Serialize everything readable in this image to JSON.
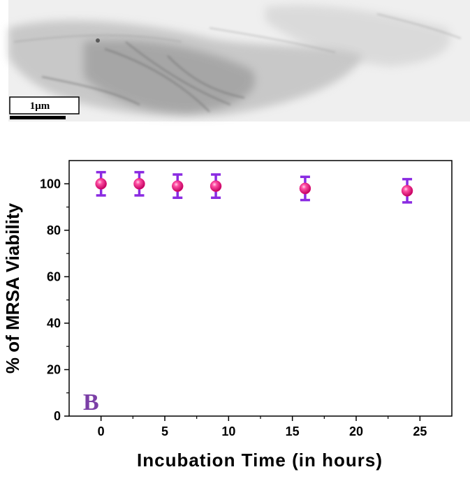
{
  "micrograph": {
    "scale_bar_label": "1μm"
  },
  "panel_label": "B",
  "colors": {
    "marker": "#e8107a",
    "error_bar": "#8a2be2",
    "panel_label": "#7b3fa6",
    "micrograph_background": "#efefef"
  },
  "chart_data": {
    "type": "scatter",
    "title": "",
    "xlabel": "Incubation Time (in hours)",
    "ylabel": "% of MRSA Viability",
    "xlim": [
      -2.5,
      27.5
    ],
    "ylim": [
      0,
      110
    ],
    "x_ticks": [
      0,
      5,
      10,
      15,
      20,
      25
    ],
    "y_ticks": [
      0,
      20,
      40,
      60,
      80,
      100
    ],
    "grid": false,
    "legend": "none",
    "series": [
      {
        "x": [
          0,
          3,
          6,
          9,
          16,
          24
        ],
        "y": [
          100,
          100,
          99,
          99,
          98,
          97
        ],
        "error": [
          5,
          5,
          5,
          5,
          5,
          5
        ]
      }
    ]
  }
}
